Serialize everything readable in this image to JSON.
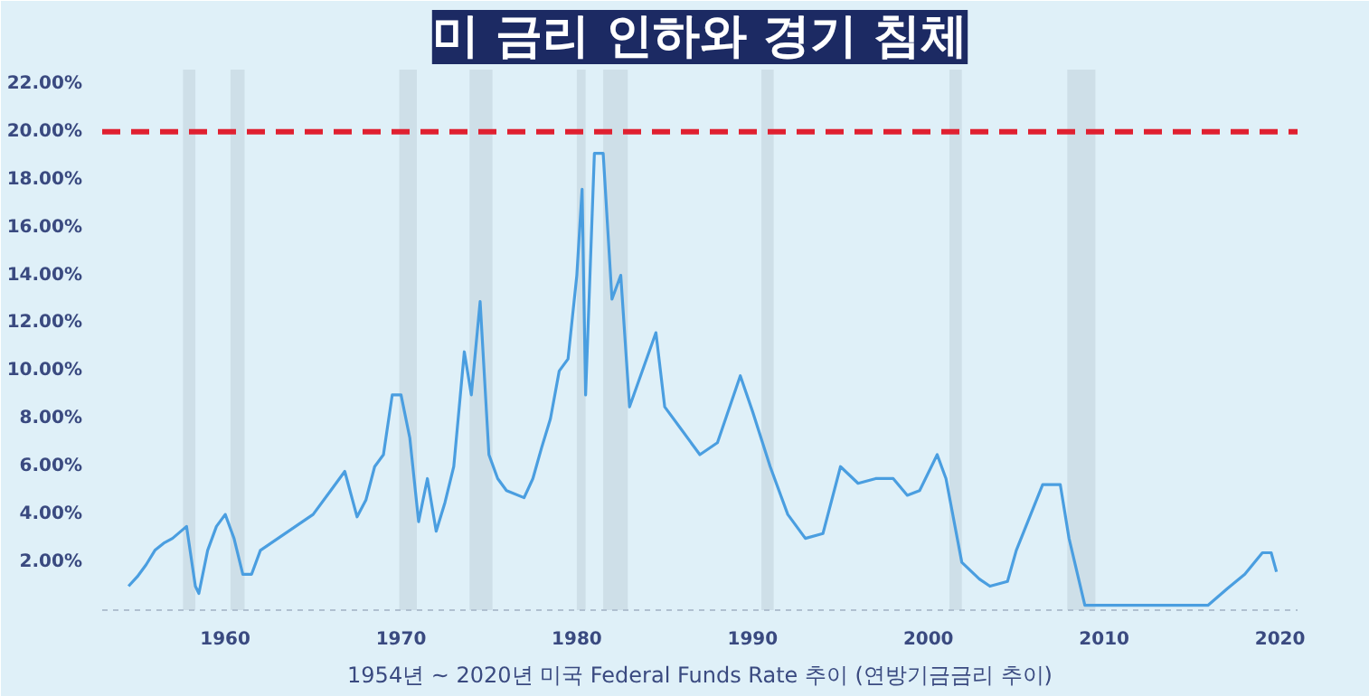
{
  "chart_data": {
    "type": "line",
    "title": "미 금리 인하와 경기 침체",
    "annotations": [
      "1954년 ~ 2020년 미국 Federal Funds Rate 추이 (연방기금금리 추이)"
    ],
    "series": [
      {
        "color": "#4a9ee0",
        "x": [
          1954.5,
          1955,
          1955.5,
          1956,
          1956.5,
          1957,
          1957.8,
          1958.3,
          1958.5,
          1959,
          1959.5,
          1960,
          1960.5,
          1961,
          1961.5,
          1962,
          1963,
          1964,
          1965,
          1966,
          1966.8,
          1967.5,
          1968,
          1968.5,
          1969,
          1969.5,
          1970,
          1970.5,
          1971,
          1971.5,
          1972,
          1972.5,
          1973,
          1973.6,
          1974,
          1974.5,
          1975,
          1975.5,
          1976,
          1977,
          1977.5,
          1978,
          1978.5,
          1979,
          1979.5,
          1980,
          1980.3,
          1980.5,
          1981,
          1981.5,
          1982,
          1982.5,
          1983,
          1984.5,
          1985,
          1986,
          1987,
          1988,
          1989.3,
          1990,
          1991,
          1992,
          1993,
          1994,
          1995,
          1996,
          1997,
          1998,
          1998.8,
          1999.5,
          2000.5,
          2001,
          2001.9,
          2002.9,
          2003.5,
          2004.5,
          2005,
          2006.5,
          2007.5,
          2008,
          2008.9,
          2015.9,
          2017,
          2018,
          2019,
          2019.5,
          2019.8
        ],
        "values": [
          1.0,
          1.4,
          1.9,
          2.5,
          2.8,
          3.0,
          3.5,
          1.0,
          0.7,
          2.5,
          3.5,
          4.0,
          3.0,
          1.5,
          1.5,
          2.5,
          3.0,
          3.5,
          4.0,
          5.0,
          5.8,
          3.9,
          4.6,
          6.0,
          6.5,
          9.0,
          9.0,
          7.2,
          3.7,
          5.5,
          3.3,
          4.5,
          6.0,
          10.8,
          9.0,
          12.9,
          6.5,
          5.5,
          5.0,
          4.7,
          5.5,
          6.8,
          8.0,
          10.0,
          10.5,
          14.0,
          17.6,
          9.0,
          19.1,
          19.1,
          13.0,
          14.0,
          8.5,
          11.6,
          8.5,
          7.5,
          6.5,
          7.0,
          9.8,
          8.3,
          6.0,
          4.0,
          3.0,
          3.2,
          6.0,
          5.3,
          5.5,
          5.5,
          4.8,
          5.0,
          6.5,
          5.5,
          2.0,
          1.3,
          1.0,
          1.2,
          2.5,
          5.25,
          5.25,
          3.0,
          0.2,
          0.2,
          0.9,
          1.5,
          2.4,
          2.4,
          1.6
        ]
      }
    ],
    "xlim": [
      1953,
      2021
    ],
    "ylim": [
      0,
      22.6
    ],
    "xticks": [
      1960,
      1970,
      1980,
      1990,
      2000,
      2010,
      2020
    ],
    "yticks": [
      {
        "value": 2,
        "label": "2.00%"
      },
      {
        "value": 4,
        "label": "4.00%"
      },
      {
        "value": 6,
        "label": "6.00%"
      },
      {
        "value": 8,
        "label": "8.00%"
      },
      {
        "value": 10,
        "label": "10.00%"
      },
      {
        "value": 12,
        "label": "12.00%"
      },
      {
        "value": 14,
        "label": "14.00%"
      },
      {
        "value": 16,
        "label": "16.00%"
      },
      {
        "value": 18,
        "label": "18.00%"
      },
      {
        "value": 20,
        "label": "20.00%"
      },
      {
        "value": 22,
        "label": "22.00%"
      }
    ],
    "ref_lines": [
      {
        "axis": "y",
        "value": 20,
        "color": "#e02030",
        "line_style": "dashed"
      }
    ],
    "bands": [
      {
        "axis": "x",
        "from": 1957.6,
        "to": 1958.3,
        "color": "#c9dbe4"
      },
      {
        "axis": "x",
        "from": 1960.3,
        "to": 1961.1,
        "color": "#c9dbe4"
      },
      {
        "axis": "x",
        "from": 1969.9,
        "to": 1970.9,
        "color": "#c9dbe4"
      },
      {
        "axis": "x",
        "from": 1973.9,
        "to": 1975.2,
        "color": "#c9dbe4"
      },
      {
        "axis": "x",
        "from": 1980.0,
        "to": 1980.5,
        "color": "#c9dbe4"
      },
      {
        "axis": "x",
        "from": 1981.5,
        "to": 1982.9,
        "color": "#c9dbe4"
      },
      {
        "axis": "x",
        "from": 1990.5,
        "to": 1991.2,
        "color": "#c9dbe4"
      },
      {
        "axis": "x",
        "from": 2001.2,
        "to": 2001.9,
        "color": "#c9dbe4"
      },
      {
        "axis": "x",
        "from": 2007.9,
        "to": 2009.5,
        "color": "#c9dbe4"
      }
    ],
    "grid": false
  }
}
